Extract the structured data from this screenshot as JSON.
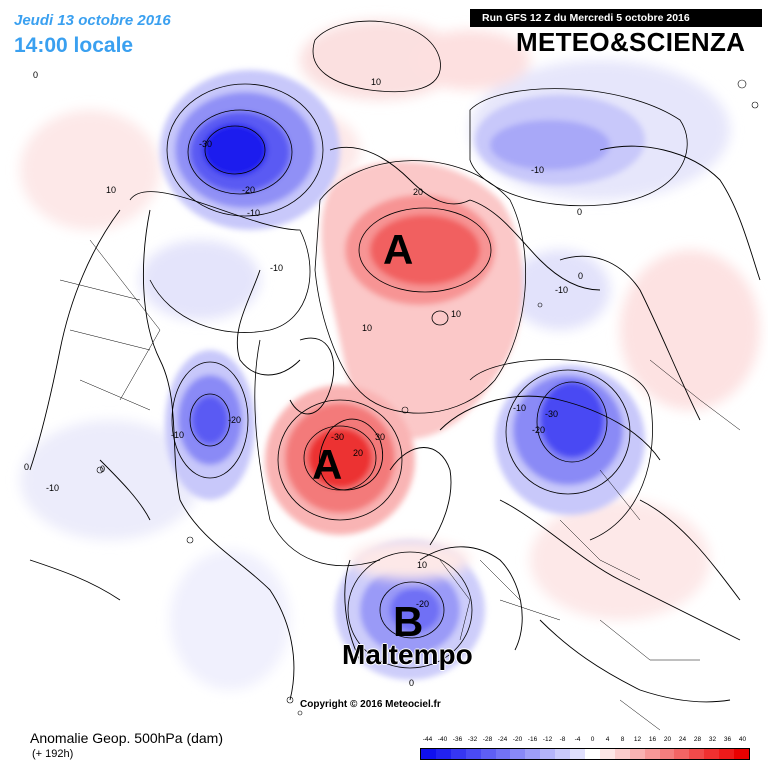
{
  "header": {
    "date": "Jeudi 13 octobre 2016",
    "time": "14:00 locale",
    "run": "Run GFS 12 Z du Mercredi 5 octobre 2016",
    "brand": "METEO&SCIENZA"
  },
  "footer": {
    "title": "Anomalie Geop. 500hPa (dam)",
    "subtitle": "(+ 192h)",
    "copyright": "Copyright © 2016 Meteociel.fr"
  },
  "annotations": {
    "high_north": "A",
    "high_atlantic": "A",
    "low_europe": "B",
    "low_europe_caption": "Maltempo"
  },
  "contour_labels": {
    "c1": "-30",
    "c2": "-20",
    "c3": "-10",
    "c4": "10",
    "c5": "10",
    "c6": "-10",
    "c7": "20",
    "c8": "10",
    "c9": "10",
    "c10": "-10",
    "c11": "-10",
    "c12": "0",
    "c13": "-10",
    "c14": "-20",
    "c15": "0",
    "c16": "-10",
    "c17": "-30",
    "c18": "30",
    "c19": "20",
    "c20": "-10",
    "c21": "-30",
    "c22": "-20",
    "c23": "-20",
    "c24": "0",
    "c25": "0",
    "c26": "10",
    "c27": "0",
    "c28": "0"
  },
  "legend": {
    "ticks": [
      "-44",
      "-40",
      "-36",
      "-32",
      "-28",
      "-24",
      "-20",
      "-16",
      "-12",
      "-8",
      "-4",
      "0",
      "4",
      "8",
      "12",
      "16",
      "20",
      "24",
      "28",
      "32",
      "36",
      "40"
    ],
    "colors": [
      "#1010ee",
      "#2222f0",
      "#3636f2",
      "#4a4af4",
      "#5e5ef5",
      "#7272f6",
      "#8888f7",
      "#9e9ef8",
      "#b4b4fa",
      "#cacafb",
      "#e0e0fd",
      "#ffffff",
      "#fde6e6",
      "#fbcccc",
      "#f9b2b2",
      "#f79898",
      "#f57e7e",
      "#f36464",
      "#f14a4a",
      "#ef3030",
      "#ed1a1a",
      "#e80000"
    ]
  }
}
